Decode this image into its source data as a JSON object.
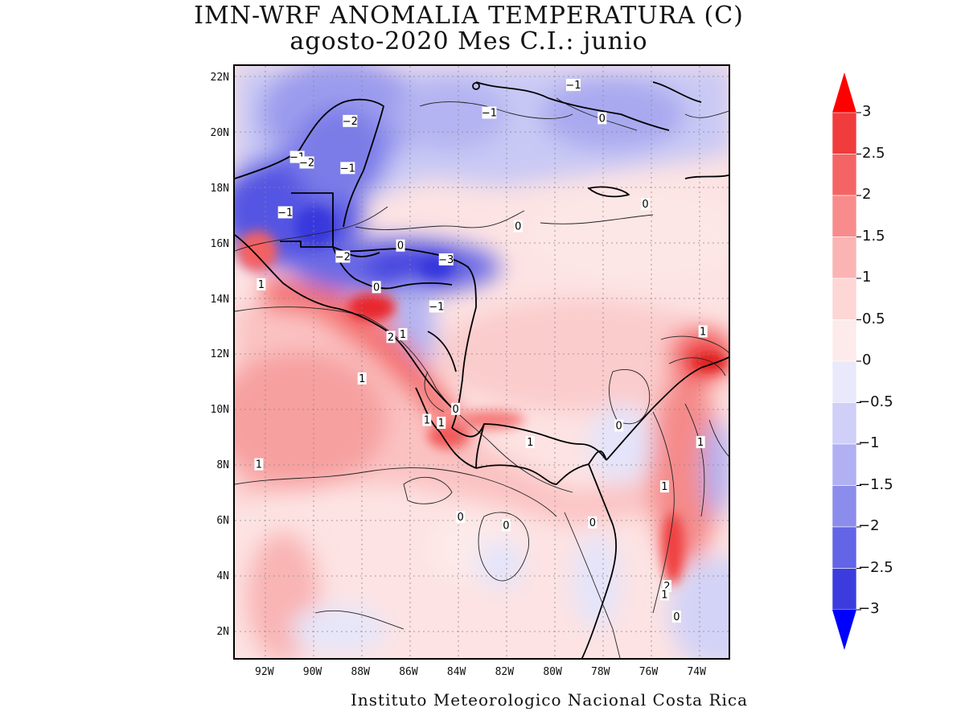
{
  "title": {
    "line1": "IMN-WRF  ANOMALIA TEMPERATURA (C)",
    "line2": "agosto-2020 Mes C.I.: junio"
  },
  "footer": "Instituto Meteorologico Nacional Costa Rica",
  "axes": {
    "lat_labels": [
      "22N",
      "20N",
      "18N",
      "16N",
      "14N",
      "12N",
      "10N",
      "8N",
      "6N",
      "4N",
      "2N"
    ],
    "lon_labels": [
      "92W",
      "90W",
      "88W",
      "86W",
      "84W",
      "82W",
      "80W",
      "78W",
      "76W",
      "74W"
    ],
    "lat_range": [
      1,
      22.5
    ],
    "lon_range": [
      -93.3,
      -72.6
    ]
  },
  "legend": {
    "levels": [
      "3",
      "2.5",
      "2",
      "1.5",
      "1",
      "0.5",
      "0",
      "−0.5",
      "−1",
      "−1.5",
      "−2",
      "−2.5",
      "−3"
    ],
    "colors_warm_to_cold": [
      "#e8141c",
      "#f03c3c",
      "#f56464",
      "#f88c8c",
      "#fbb4b4",
      "#fdd6d6",
      "#fdebeb",
      "#e9e9fb",
      "#cfcff7",
      "#b0b0f2",
      "#8c8cec",
      "#6464e6",
      "#3c3cde",
      "#1a1ad8"
    ],
    "top_arrow_color": "#ff0000",
    "bottom_arrow_color": "#0000ff"
  },
  "contour_labels": [
    {
      "text": "−1",
      "lon": -79.2,
      "lat": 21.8
    },
    {
      "text": "−1",
      "lon": -82.7,
      "lat": 20.8
    },
    {
      "text": "0",
      "lon": -78.0,
      "lat": 20.6
    },
    {
      "text": "−2",
      "lon": -88.5,
      "lat": 20.5
    },
    {
      "text": "−1",
      "lon": -90.7,
      "lat": 19.2
    },
    {
      "text": "−2",
      "lon": -90.3,
      "lat": 19.0
    },
    {
      "text": "−1",
      "lon": -88.6,
      "lat": 18.8
    },
    {
      "text": "−1",
      "lon": -91.2,
      "lat": 17.2
    },
    {
      "text": "0",
      "lon": -76.2,
      "lat": 17.5
    },
    {
      "text": "0",
      "lon": -81.5,
      "lat": 16.7
    },
    {
      "text": "0",
      "lon": -86.4,
      "lat": 16.0
    },
    {
      "text": "−2",
      "lon": -88.8,
      "lat": 15.6
    },
    {
      "text": "−3",
      "lon": -84.5,
      "lat": 15.5
    },
    {
      "text": "0",
      "lon": -87.4,
      "lat": 14.5
    },
    {
      "text": "1",
      "lon": -92.2,
      "lat": 14.6
    },
    {
      "text": "−1",
      "lon": -84.9,
      "lat": 13.8
    },
    {
      "text": "2",
      "lon": -86.8,
      "lat": 12.7
    },
    {
      "text": "1",
      "lon": -86.3,
      "lat": 12.8
    },
    {
      "text": "1",
      "lon": -73.8,
      "lat": 12.9
    },
    {
      "text": "1",
      "lon": -88.0,
      "lat": 11.2
    },
    {
      "text": "0",
      "lon": -84.1,
      "lat": 10.1
    },
    {
      "text": "1",
      "lon": -85.3,
      "lat": 9.7
    },
    {
      "text": "1",
      "lon": -84.7,
      "lat": 9.6
    },
    {
      "text": "0",
      "lon": -77.3,
      "lat": 9.5
    },
    {
      "text": "1",
      "lon": -81.0,
      "lat": 8.9
    },
    {
      "text": "1",
      "lon": -73.9,
      "lat": 8.9
    },
    {
      "text": "1",
      "lon": -92.3,
      "lat": 8.1
    },
    {
      "text": "1",
      "lon": -75.4,
      "lat": 7.3
    },
    {
      "text": "0",
      "lon": -83.9,
      "lat": 6.2
    },
    {
      "text": "0",
      "lon": -82.0,
      "lat": 5.9
    },
    {
      "text": "0",
      "lon": -78.4,
      "lat": 6.0
    },
    {
      "text": "2",
      "lon": -75.3,
      "lat": 3.7
    },
    {
      "text": "1",
      "lon": -75.4,
      "lat": 3.4
    },
    {
      "text": "0",
      "lon": -74.9,
      "lat": 2.6
    }
  ]
}
